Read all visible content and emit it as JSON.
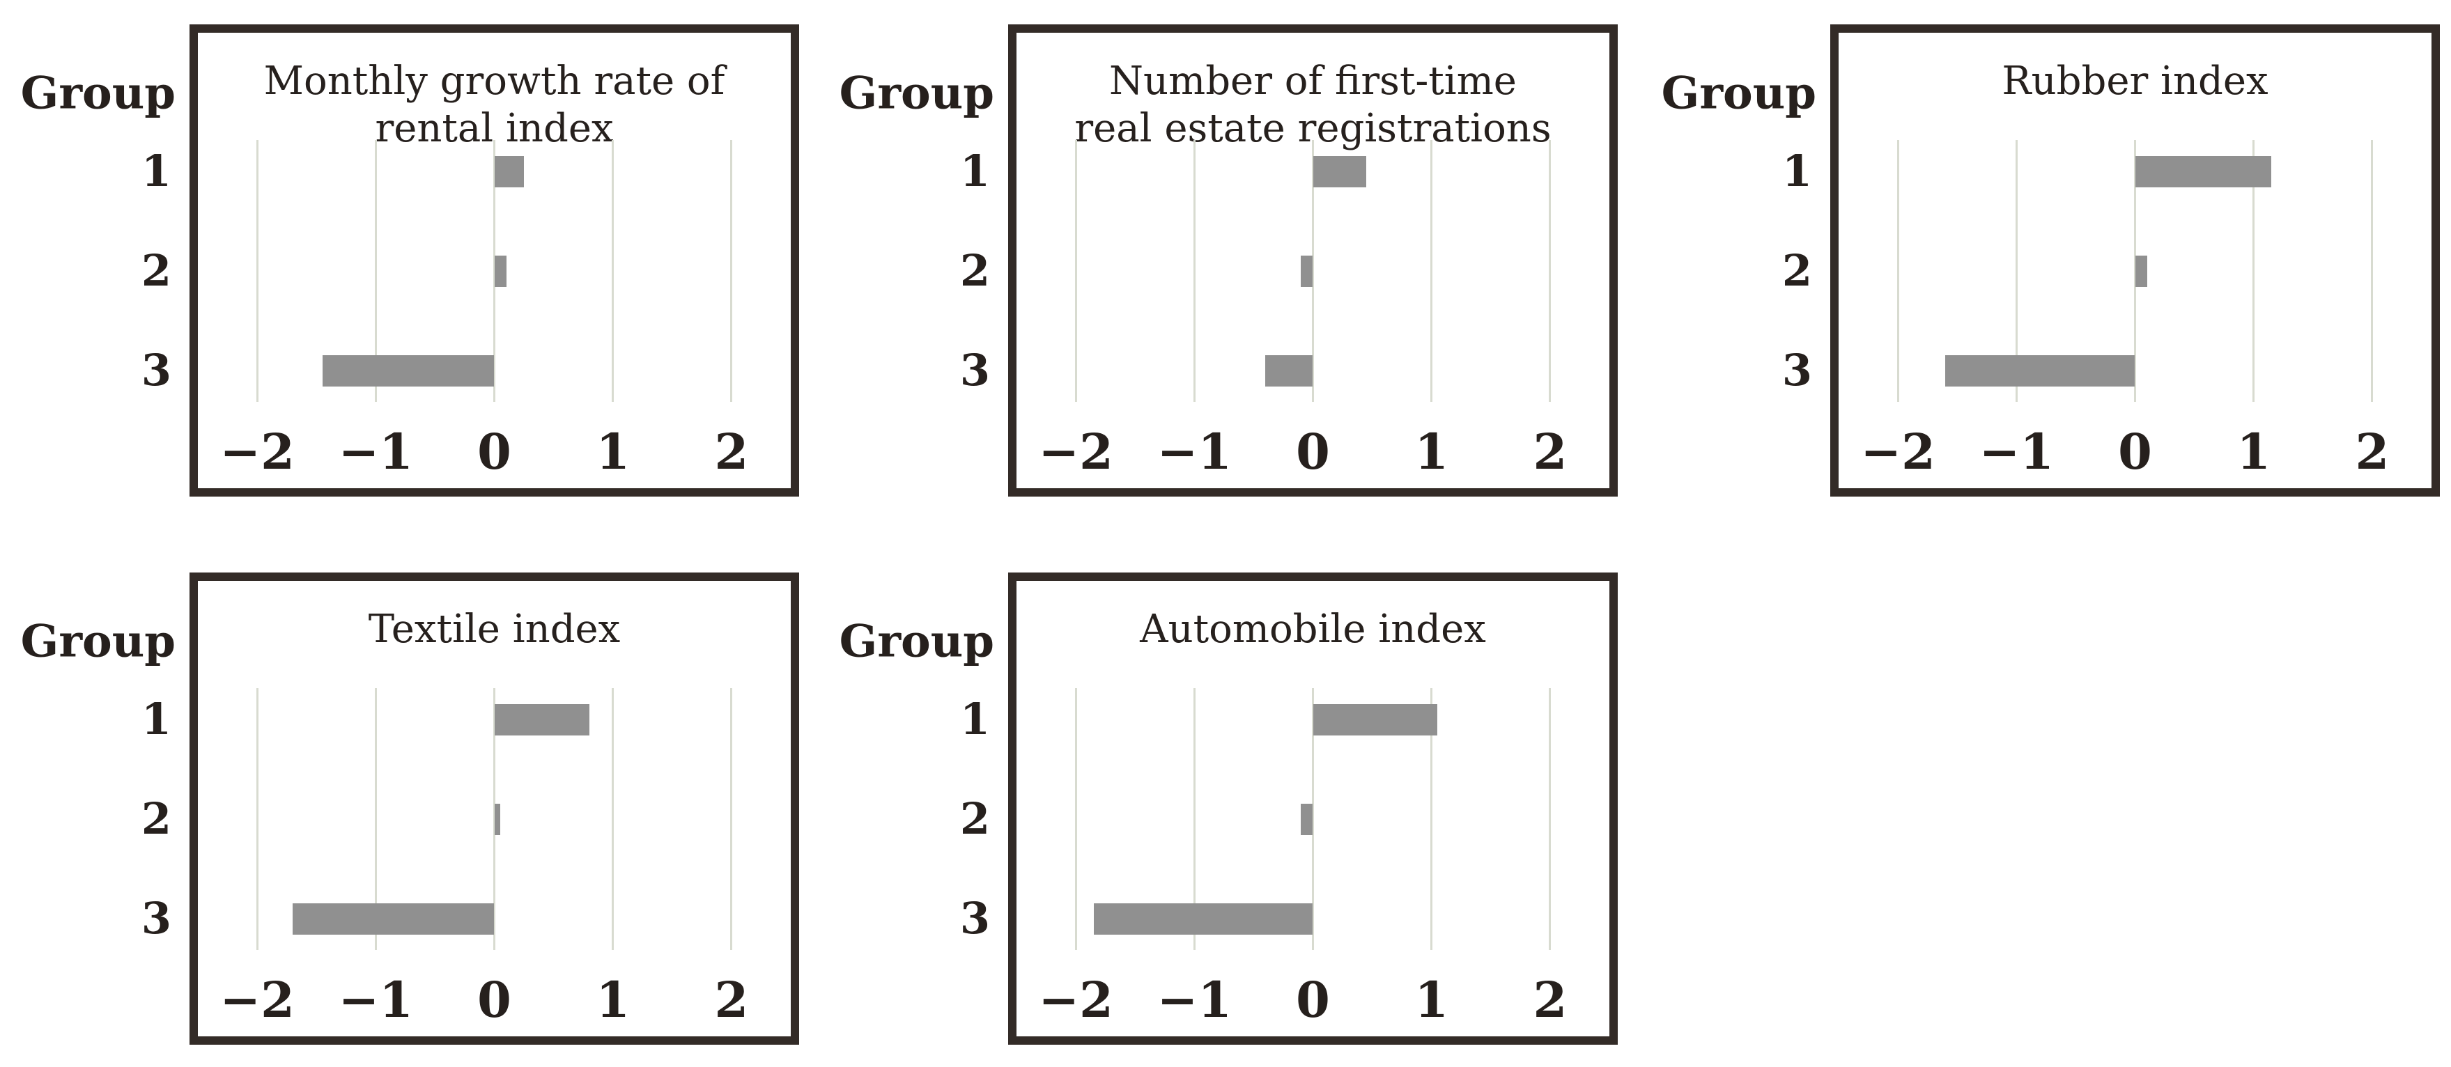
{
  "figure": {
    "group_axis_label": "Group"
  },
  "colors": {
    "background": "#ffffff",
    "panel_border": "#332b27",
    "bar": "#909090",
    "gridline": "#d8dbd0",
    "text": "#26201d"
  },
  "chart_data": [
    {
      "type": "bar",
      "orientation": "horizontal",
      "title": "Monthly growth rate of rental index",
      "title_lines": [
        "Monthly growth rate of",
        "rental index"
      ],
      "group_label": "Group",
      "categories": [
        "1",
        "2",
        "3"
      ],
      "values": [
        0.25,
        0.1,
        -1.45
      ],
      "xlim": [
        -2.5,
        2.5
      ],
      "xticks": [
        -2,
        -1,
        0,
        1,
        2
      ],
      "xtick_labels": [
        "−2",
        "−1",
        "0",
        "1",
        "2"
      ],
      "grid": true,
      "legend": false
    },
    {
      "type": "bar",
      "orientation": "horizontal",
      "title": "Number of first-time real estate registrations",
      "title_lines": [
        "Number of first-time",
        "real estate registrations"
      ],
      "group_label": "Group",
      "categories": [
        "1",
        "2",
        "3"
      ],
      "values": [
        0.45,
        -0.1,
        -0.4
      ],
      "xlim": [
        -2.5,
        2.5
      ],
      "xticks": [
        -2,
        -1,
        0,
        1,
        2
      ],
      "xtick_labels": [
        "−2",
        "−1",
        "0",
        "1",
        "2"
      ],
      "grid": true,
      "legend": false
    },
    {
      "type": "bar",
      "orientation": "horizontal",
      "title": "Rubber index",
      "title_lines": [
        "Rubber index"
      ],
      "group_label": "Group",
      "categories": [
        "1",
        "2",
        "3"
      ],
      "values": [
        1.15,
        0.1,
        -1.6
      ],
      "xlim": [
        -2.5,
        2.5
      ],
      "xticks": [
        -2,
        -1,
        0,
        1,
        2
      ],
      "xtick_labels": [
        "−2",
        "−1",
        "0",
        "1",
        "2"
      ],
      "grid": true,
      "legend": false
    },
    {
      "type": "bar",
      "orientation": "horizontal",
      "title": "Textile index",
      "title_lines": [
        "Textile index"
      ],
      "group_label": "Group",
      "categories": [
        "1",
        "2",
        "3"
      ],
      "values": [
        0.8,
        0.05,
        -1.7
      ],
      "xlim": [
        -2.5,
        2.5
      ],
      "xticks": [
        -2,
        -1,
        0,
        1,
        2
      ],
      "xtick_labels": [
        "−2",
        "−1",
        "0",
        "1",
        "2"
      ],
      "grid": true,
      "legend": false
    },
    {
      "type": "bar",
      "orientation": "horizontal",
      "title": "Automobile index",
      "title_lines": [
        "Automobile index"
      ],
      "group_label": "Group",
      "categories": [
        "1",
        "2",
        "3"
      ],
      "values": [
        1.05,
        -0.1,
        -1.85
      ],
      "xlim": [
        -2.5,
        2.5
      ],
      "xticks": [
        -2,
        -1,
        0,
        1,
        2
      ],
      "xtick_labels": [
        "−2",
        "−1",
        "0",
        "1",
        "2"
      ],
      "grid": true,
      "legend": false
    }
  ]
}
